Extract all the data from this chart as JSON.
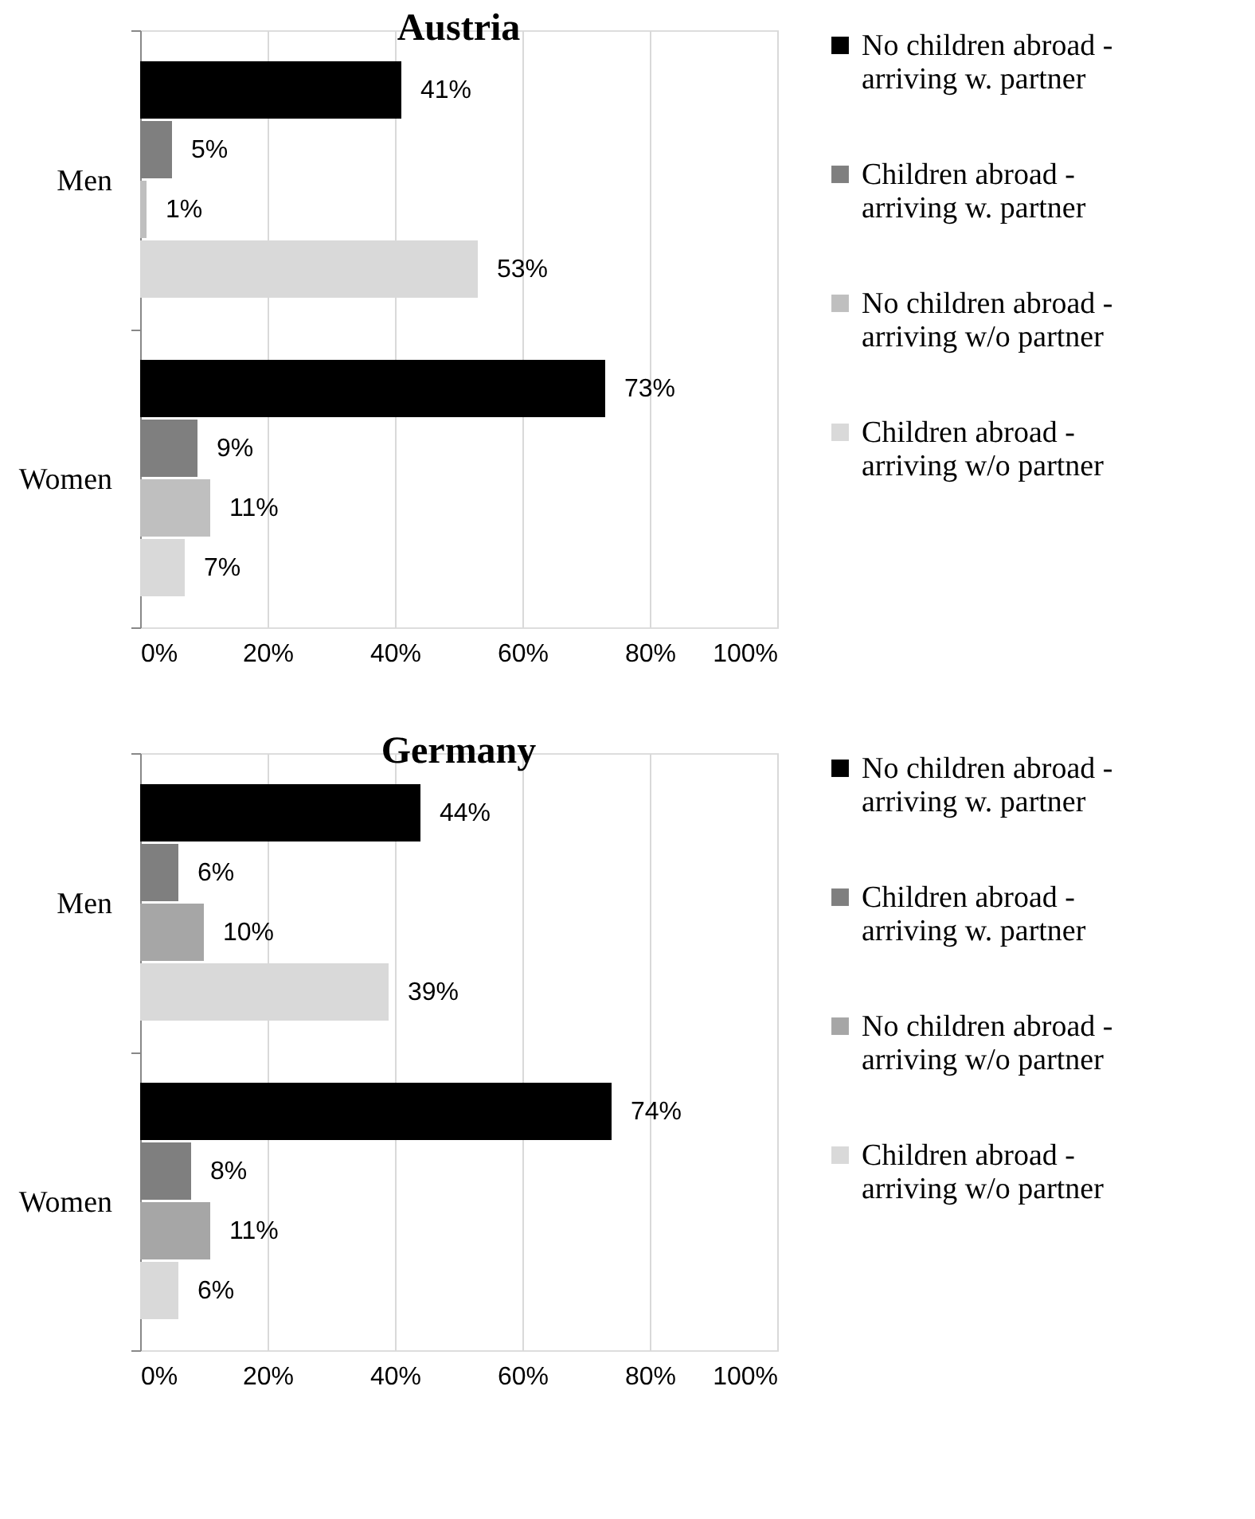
{
  "chart_data": [
    {
      "type": "bar",
      "orientation": "horizontal",
      "title": "Austria",
      "categories": [
        "Men",
        "Women"
      ],
      "xlim": [
        0,
        100
      ],
      "xticks": [
        {
          "value": 0,
          "label": "0%"
        },
        {
          "value": 20,
          "label": "20%"
        },
        {
          "value": 40,
          "label": "40%"
        },
        {
          "value": 60,
          "label": "60%"
        },
        {
          "value": 80,
          "label": "80%"
        },
        {
          "value": 100,
          "label": "100%"
        }
      ],
      "grid": "x",
      "legend": "right",
      "series": [
        {
          "name": "No children abroad - arriving w. partner",
          "color": "#000000",
          "values": [
            41,
            73
          ],
          "value_labels": [
            "41%",
            "73%"
          ]
        },
        {
          "name": "Children abroad - arriving w. partner",
          "color": "#7f7f7f",
          "values": [
            5,
            9
          ],
          "value_labels": [
            "5%",
            "9%"
          ]
        },
        {
          "name": "No children abroad - arriving w/o partner",
          "color": "#bfbfbf",
          "values": [
            1,
            11
          ],
          "value_labels": [
            "1%",
            "11%"
          ]
        },
        {
          "name": "Children abroad - arriving w/o partner",
          "color": "#d9d9d9",
          "values": [
            53,
            7
          ],
          "value_labels": [
            "53%",
            "7%"
          ]
        }
      ]
    },
    {
      "type": "bar",
      "orientation": "horizontal",
      "title": "Germany",
      "categories": [
        "Men",
        "Women"
      ],
      "xlim": [
        0,
        100
      ],
      "xticks": [
        {
          "value": 0,
          "label": "0%"
        },
        {
          "value": 20,
          "label": "20%"
        },
        {
          "value": 40,
          "label": "40%"
        },
        {
          "value": 60,
          "label": "60%"
        },
        {
          "value": 80,
          "label": "80%"
        },
        {
          "value": 100,
          "label": "100%"
        }
      ],
      "grid": "x",
      "legend": "right",
      "series": [
        {
          "name": "No children abroad - arriving w. partner",
          "color": "#000000",
          "values": [
            44,
            74
          ],
          "value_labels": [
            "44%",
            "74%"
          ]
        },
        {
          "name": "Children abroad - arriving w. partner",
          "color": "#7f7f7f",
          "values": [
            6,
            8
          ],
          "value_labels": [
            "6%",
            "8%"
          ]
        },
        {
          "name": "No children abroad - arriving w/o partner",
          "color": "#a6a6a6",
          "values": [
            10,
            11
          ],
          "value_labels": [
            "10%",
            "11%"
          ]
        },
        {
          "name": "Children abroad - arriving w/o partner",
          "color": "#d9d9d9",
          "values": [
            39,
            6
          ],
          "value_labels": [
            "39%",
            "6%"
          ]
        }
      ]
    }
  ]
}
